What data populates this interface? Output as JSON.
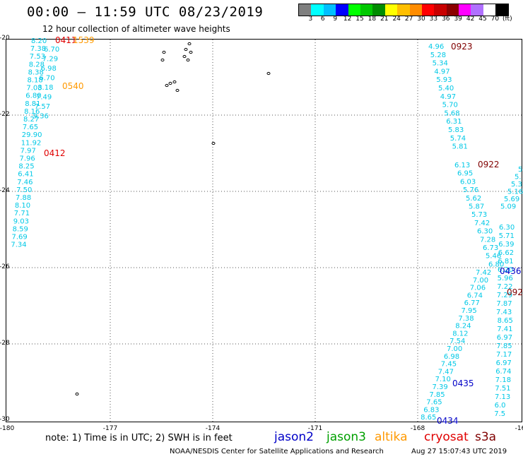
{
  "header": {
    "title": "00:00 – 11:59 UTC 08/23/2019",
    "subtitle": "12 hour collection of altimeter wave heights"
  },
  "scale": {
    "unit": "(ft)",
    "ticks": [
      "3",
      "6",
      "9",
      "12",
      "15",
      "18",
      "21",
      "24",
      "27",
      "30",
      "33",
      "36",
      "39",
      "42",
      "45",
      "70"
    ],
    "colors": [
      "#7f7f7f",
      "#00ffff",
      "#00bfff",
      "#0000ff",
      "#00ff00",
      "#00c800",
      "#008c00",
      "#ffff00",
      "#ffbf00",
      "#ff8c00",
      "#ff0000",
      "#c80000",
      "#8b0000",
      "#ff00ff",
      "#b070ff",
      "#ffffff",
      "#000000"
    ]
  },
  "map": {
    "lon_ticks": [
      "-180",
      "-177",
      "-174",
      "-171",
      "-168",
      "-16"
    ],
    "lat_ticks": [
      "-20",
      "-22",
      "-24",
      "-26",
      "-28",
      "-30"
    ],
    "grid": true
  },
  "tracks_west": [
    {
      "v": "8.20",
      "c": "#00c8e6"
    },
    {
      "v": "7.38",
      "c": "#00c8e6"
    },
    {
      "v": "7.53",
      "c": "#00c8e6"
    },
    {
      "v": "8.28",
      "c": "#00c8e6"
    },
    {
      "v": "8.38",
      "c": "#00c8e6"
    },
    {
      "v": "8.18",
      "c": "#00c8e6"
    },
    {
      "v": "7.03",
      "c": "#00c8e6"
    },
    {
      "v": "6.80",
      "c": "#00c8e6"
    },
    {
      "v": "8.81",
      "c": "#00c8e6"
    },
    {
      "v": "8.16",
      "c": "#00c8e6"
    },
    {
      "v": "8.27",
      "c": "#00c8e6"
    },
    {
      "v": "7.65",
      "c": "#00c8e6"
    },
    {
      "v": "29.90",
      "c": "#ffa000"
    },
    {
      "v": "11.92",
      "c": "#0000c8"
    },
    {
      "v": "7.97",
      "c": "#00c8e6"
    },
    {
      "v": "7.96",
      "c": "#00c8e6"
    },
    {
      "v": "8.25",
      "c": "#00c8e6"
    },
    {
      "v": "6.41",
      "c": "#00c8e6"
    },
    {
      "v": "7.46",
      "c": "#00c8e6"
    },
    {
      "v": "7.50",
      "c": "#00c8e6"
    },
    {
      "v": "7.88",
      "c": "#00c8e6"
    },
    {
      "v": "8.10",
      "c": "#00c8e6"
    },
    {
      "v": "7.71",
      "c": "#00c8e6"
    },
    {
      "v": "9.03",
      "c": "#0000c8"
    },
    {
      "v": "8.59",
      "c": "#00c8e6"
    },
    {
      "v": "7.69",
      "c": "#00c8e6"
    },
    {
      "v": "7.34",
      "c": "#00c8e6"
    }
  ],
  "tracks_west2": [
    "6.70",
    "7.29",
    "6.98",
    "6.70",
    "8.18",
    "7.49",
    "7.57",
    "9.36"
  ],
  "tracks_east1": [
    "4.96",
    "5.28",
    "5.34",
    "4.97",
    "5.93",
    "5.40",
    "4.97",
    "5.70",
    "5.68",
    "6.31",
    "5.83",
    "5.74",
    "5.81"
  ],
  "tracks_east2": [
    "6.13",
    "6.95",
    "6.03",
    "5.76",
    "5.62",
    "5.87",
    "5.73",
    "7.42",
    "6.30",
    "7.28",
    "6.73",
    "5.46",
    "6.80",
    "7.42",
    "7.00",
    "7.06",
    "6.74",
    "6.77",
    "7.95",
    "7.38",
    "8.24",
    "8.12",
    "7.54",
    "7.00",
    "6.98",
    "7.45",
    "7.47",
    "7.10",
    "7.39",
    "7.85",
    "7.65",
    "6.83",
    "8.65"
  ],
  "tracks_east3": [
    "6.30",
    "5.71",
    "6.39",
    "6.62",
    "6.81",
    "6.20",
    "5.96",
    "7.22",
    "7.29",
    "7.87",
    "7.43",
    "8.65",
    "7.41",
    "6.97",
    "7.85",
    "7.17",
    "6.97",
    "6.74",
    "7.18",
    "7.51",
    "7.13",
    "6.0",
    "7.5"
  ],
  "tracks_east4": [
    "5",
    "5.",
    "5.3",
    "5.16",
    "5.69",
    "5.09"
  ],
  "time_marks": [
    {
      "t": "0411",
      "c": "#e00000"
    },
    {
      "t": "1539",
      "c": "#ff9900"
    },
    {
      "t": "0540",
      "c": "#ff9900"
    },
    {
      "t": "0412",
      "c": "#e00000"
    },
    {
      "t": "0923",
      "c": "#800000"
    },
    {
      "t": "0922",
      "c": "#800000"
    },
    {
      "t": "0436",
      "c": "#0000c8"
    },
    {
      "t": "092",
      "c": "#800000"
    },
    {
      "t": "0435",
      "c": "#0000c8"
    },
    {
      "t": "0434",
      "c": "#0000c8"
    }
  ],
  "footer": {
    "note": "note: 1) Time is in UTC; 2) SWH is in feet",
    "legend": [
      {
        "label": "jason2",
        "color": "#0000c8"
      },
      {
        "label": "jason3",
        "color": "#00a000"
      },
      {
        "label": "altika",
        "color": "#ff9900"
      },
      {
        "label": "cryosat",
        "color": "#e00000"
      },
      {
        "label": "s3a",
        "color": "#800000"
      }
    ],
    "credit": "NOAA/NESDIS Center for Satellite Applications and Research",
    "timestamp": "Aug 27 15:07:43 UTC 2019"
  }
}
